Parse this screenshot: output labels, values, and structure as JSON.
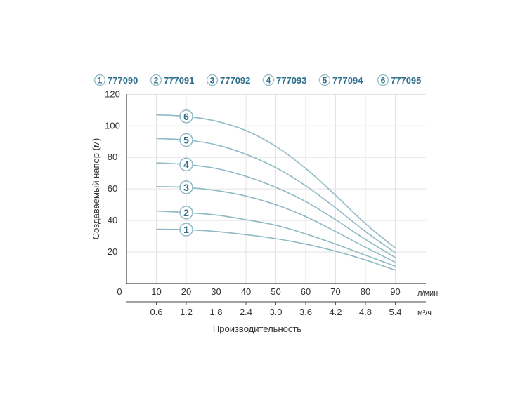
{
  "chart_data": {
    "type": "line",
    "ylabel": "Создаваемый напор (м)",
    "xlabel": "Производительность",
    "x_unit": "л/мин",
    "x2_unit": "м³/ч",
    "x_origin_label": "0",
    "x_ticks": [
      "10",
      "20",
      "30",
      "40",
      "50",
      "60",
      "70",
      "80",
      "90"
    ],
    "x2_ticks": [
      "0.6",
      "1.2",
      "1.8",
      "2.4",
      "3.0",
      "3.6",
      "4.2",
      "4.8",
      "5.4"
    ],
    "y_ticks": [
      "20",
      "40",
      "60",
      "80",
      "100",
      "120"
    ],
    "xlim": [
      0,
      90
    ],
    "ylim": [
      0,
      120
    ],
    "grid": true,
    "legend_position": "top",
    "curve_color": "#8fb9c4",
    "label_color": "#2e6f8c",
    "series": [
      {
        "name": "777090",
        "num": "1",
        "x": [
          10,
          20,
          30,
          40,
          50,
          60,
          70,
          80,
          90
        ],
        "y": [
          34.5,
          34.2,
          33,
          31,
          28.5,
          25,
          20.5,
          15,
          8.5
        ]
      },
      {
        "name": "777091",
        "num": "2",
        "x": [
          10,
          20,
          30,
          40,
          50,
          60,
          70,
          80,
          90
        ],
        "y": [
          46,
          45,
          43.5,
          40.5,
          37,
          31.5,
          25,
          18,
          11
        ]
      },
      {
        "name": "777092",
        "num": "3",
        "x": [
          10,
          20,
          30,
          40,
          50,
          60,
          70,
          80,
          90
        ],
        "y": [
          61.5,
          61,
          59,
          55.5,
          50,
          42.5,
          33,
          23,
          13.5
        ]
      },
      {
        "name": "777093",
        "num": "4",
        "x": [
          10,
          20,
          30,
          40,
          50,
          60,
          70,
          80,
          90
        ],
        "y": [
          76.5,
          75.5,
          73,
          68,
          61,
          52,
          40.5,
          28,
          16.5
        ]
      },
      {
        "name": "777094",
        "num": "5",
        "x": [
          10,
          20,
          30,
          40,
          50,
          60,
          70,
          80,
          90
        ],
        "y": [
          92,
          91,
          88,
          82,
          73.5,
          62,
          48,
          33,
          19.5
        ]
      },
      {
        "name": "777095",
        "num": "6",
        "x": [
          10,
          20,
          30,
          40,
          50,
          60,
          70,
          80,
          90
        ],
        "y": [
          107,
          106,
          103,
          97,
          87,
          73,
          56,
          38,
          22.5
        ]
      }
    ]
  }
}
